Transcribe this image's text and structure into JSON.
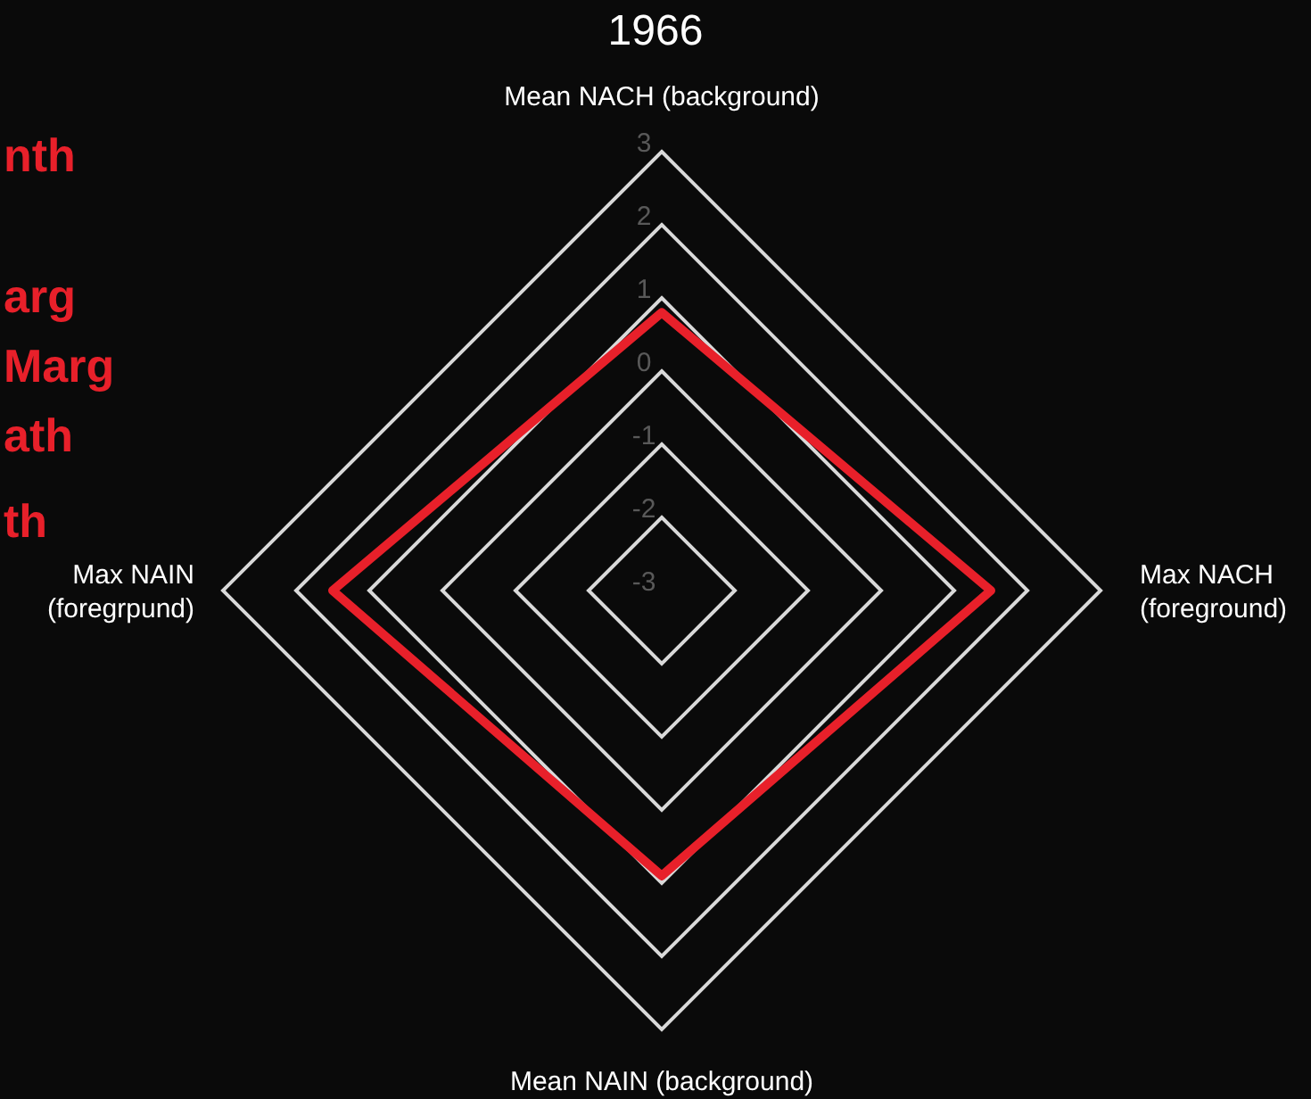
{
  "chart_data": {
    "type": "radar",
    "title": "1966",
    "categories": [
      "Mean NACH (background)",
      "Max NACH (foreground)",
      "Mean NAIN (background)",
      "Max NAIN (foregrpund)"
    ],
    "series": [
      {
        "color": "#e8202a",
        "values": [
          0.8,
          1.5,
          0.9,
          1.5
        ]
      }
    ],
    "ylim": [
      -3,
      3
    ],
    "yticks": [
      -3,
      -2,
      -1,
      0,
      1,
      2,
      3
    ],
    "grid": true,
    "legend": false,
    "annotations": [
      "nth",
      "arg",
      "Marg",
      "ath",
      "th"
    ]
  }
}
